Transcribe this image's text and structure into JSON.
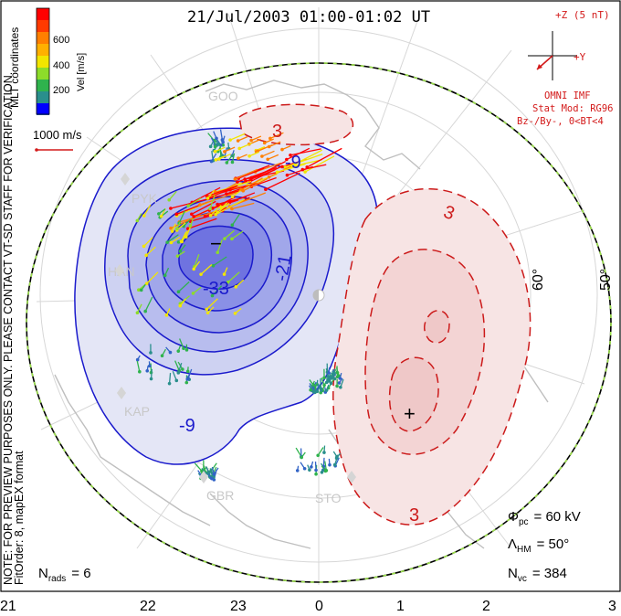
{
  "title": "21/Jul/2003 01:00-01:02 UT",
  "colorbar": {
    "label": "Vel [m/s]",
    "ticks": [
      "600",
      "400",
      "200"
    ],
    "colors": [
      "#ff0000",
      "#ff7f00",
      "#f2e500",
      "#8ddc2a",
      "#2fb34d",
      "#2a8f8c",
      "#3163c6",
      "#0000ff"
    ]
  },
  "coordinates_label": "MLT coordinates",
  "vector_scale": {
    "label": "1000 m/s",
    "color": "#d31a1a"
  },
  "imf": {
    "clock_label": "+Z (5 nT)",
    "y_label": "+Y",
    "source": "OMNI IMF",
    "model": "Stat Mod: RG96",
    "condition": "Bz-/By-, 0<BT<4"
  },
  "side_note": "NOTE: FOR PREVIEW PURPOSES ONLY. PLEASE CONTACT VT-SD STAFF FOR VERIFICATION.",
  "fit_order": "FitOrder: 8, mapEX format",
  "latitude_labels": [
    "60°",
    "50°"
  ],
  "mlt_labels": [
    "21",
    "22",
    "23",
    "0",
    "1",
    "2",
    "3"
  ],
  "stations": [
    "GOO",
    "PYK",
    "HAN",
    "KAP",
    "GBR",
    "STO"
  ],
  "contour_labels": {
    "negative": [
      "-9",
      "-21",
      "-33",
      "-9",
      "-9"
    ],
    "positive": [
      "3",
      "3",
      "3"
    ]
  },
  "extrema": {
    "min_marker": "−",
    "max_marker": "+"
  },
  "stats": {
    "phi_symbol": "Φ",
    "phi_sub": "pc",
    "phi_value": "= 60 kV",
    "lambda_symbol": "Λ",
    "lambda_sub": "HM",
    "lambda_value": "= 50°",
    "nvc_symbol": "N",
    "nvc_sub": "vc",
    "nvc_value": "= 384",
    "nrads_symbol": "N",
    "nrads_sub": "rads",
    "nrads_value": "= 6"
  },
  "cell_colors": {
    "negative_fills": [
      "#e4e6f6",
      "#ced2f2",
      "#b8bdee",
      "#a1a7ea",
      "#8a90e6",
      "#6f73e0"
    ],
    "positive_fills": [
      "#f7e4e4",
      "#f3d4d4",
      "#efc8c8"
    ],
    "negative_line": "#1a1acc",
    "positive_line": "#cc1a1a"
  }
}
